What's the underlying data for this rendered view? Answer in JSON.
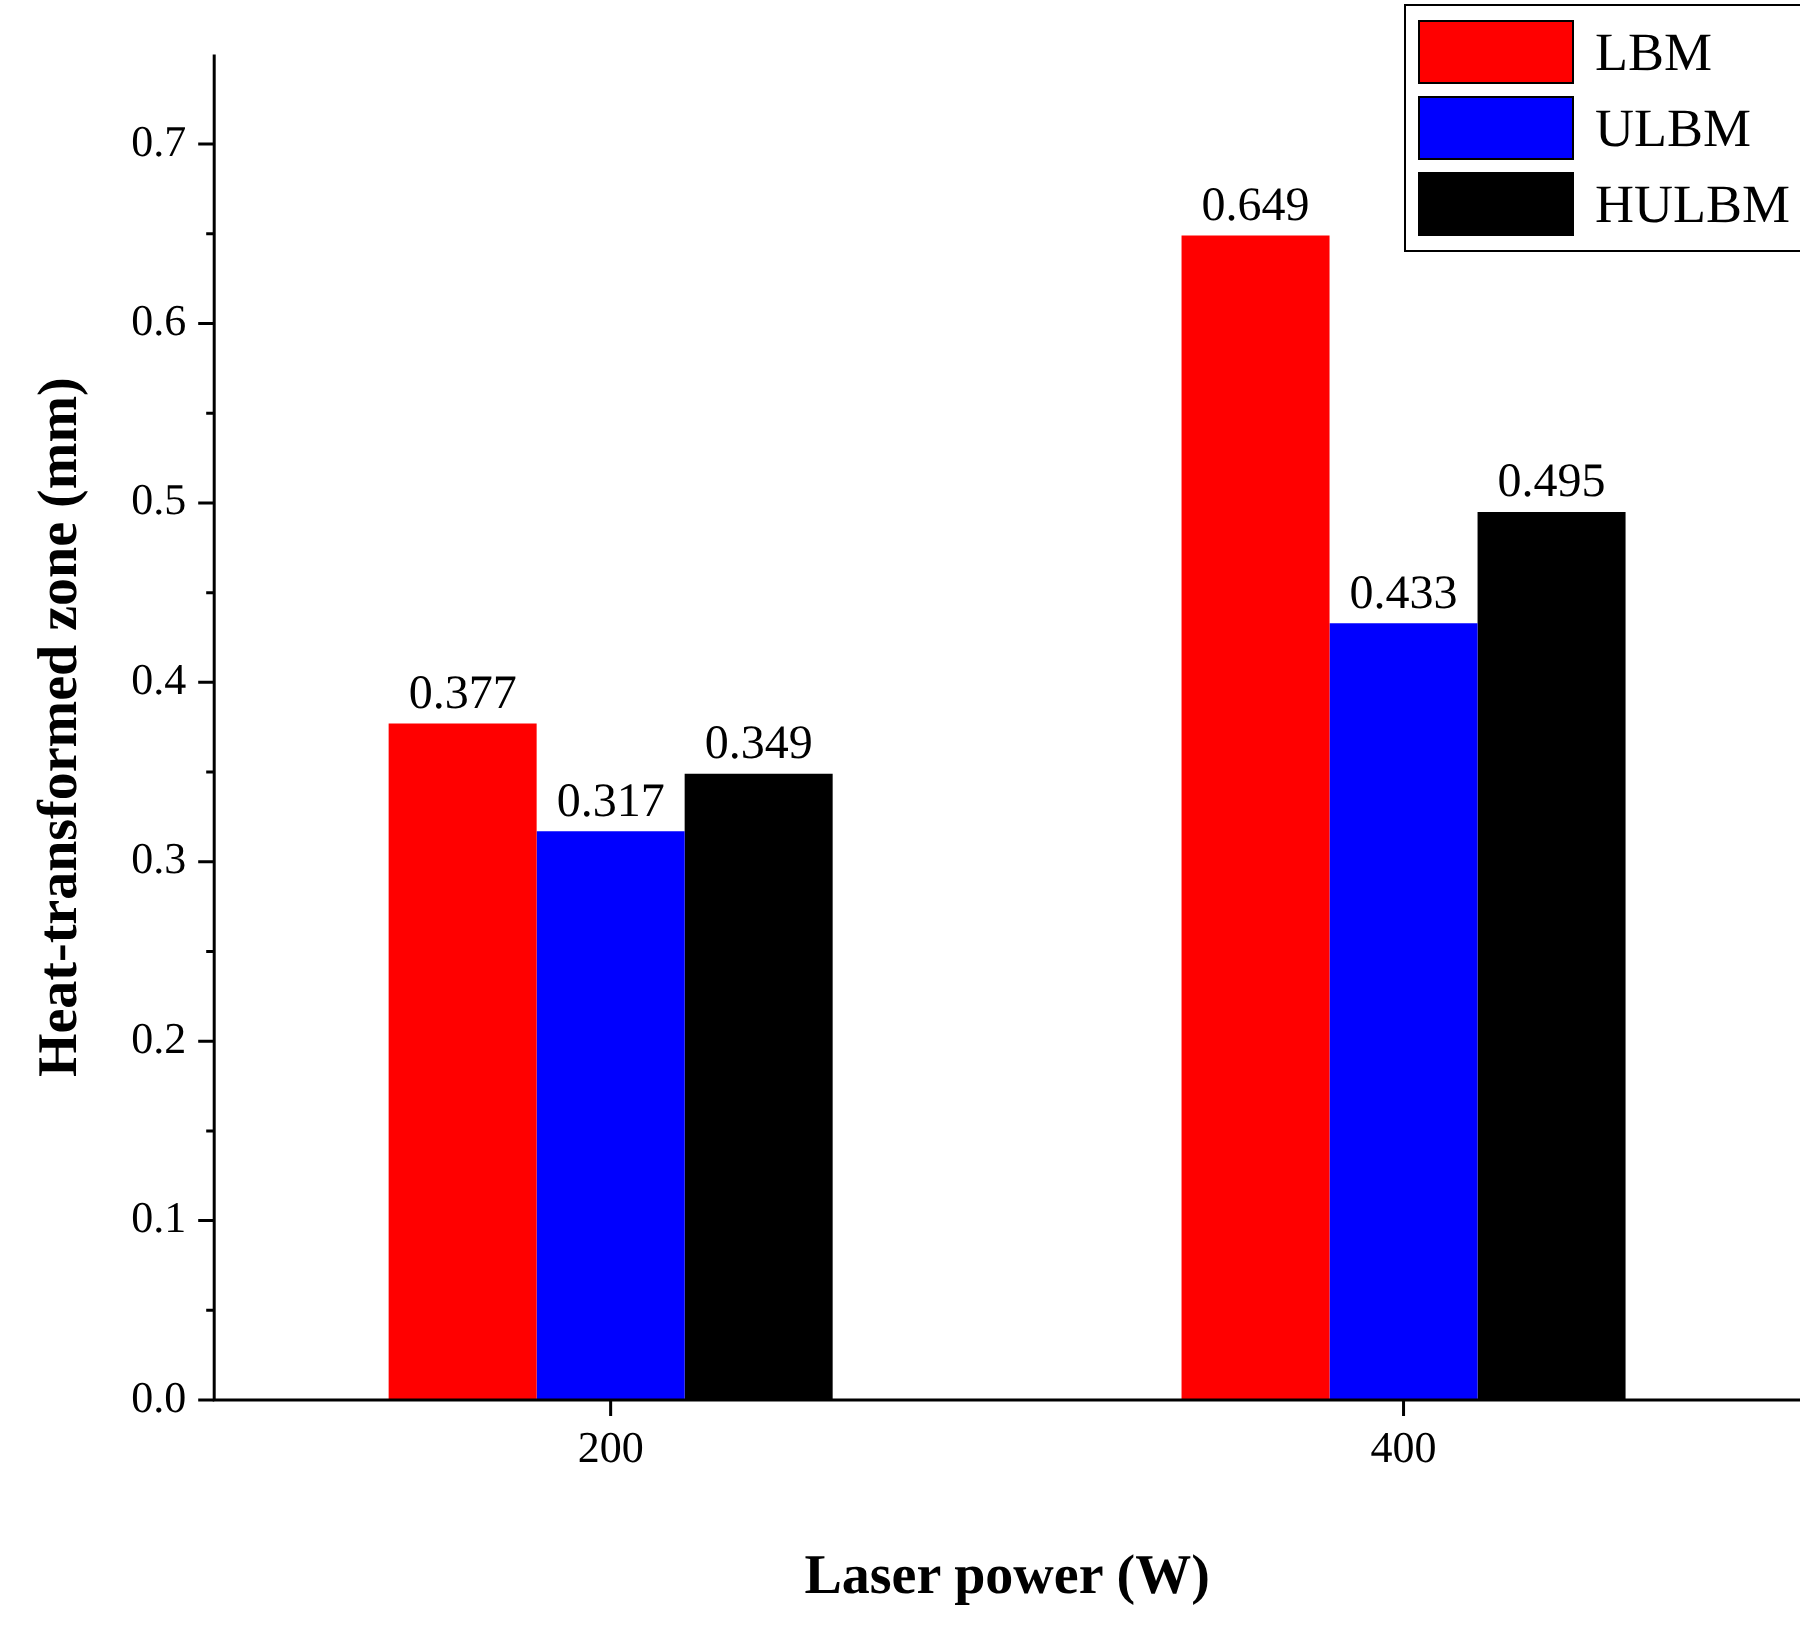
{
  "chart_data": {
    "type": "bar",
    "xlabel": "Laser power (W)",
    "ylabel": "Heat-transformed zone (mm)",
    "categories": [
      "200",
      "400"
    ],
    "series": [
      {
        "name": "LBM",
        "color": "#ff0000",
        "values": [
          0.377,
          0.649
        ]
      },
      {
        "name": "ULBM",
        "color": "#0000ff",
        "values": [
          0.317,
          0.433
        ]
      },
      {
        "name": "HULBM",
        "color": "#000000",
        "values": [
          0.349,
          0.495
        ]
      }
    ],
    "ylim": [
      0,
      0.75
    ],
    "yticks": [
      {
        "value": 0,
        "label": "0.0"
      },
      0.1,
      0.2,
      0.3,
      0.4,
      0.5,
      0.6,
      0.7
    ],
    "data_labels": true,
    "legend": "top right",
    "grid": false
  }
}
